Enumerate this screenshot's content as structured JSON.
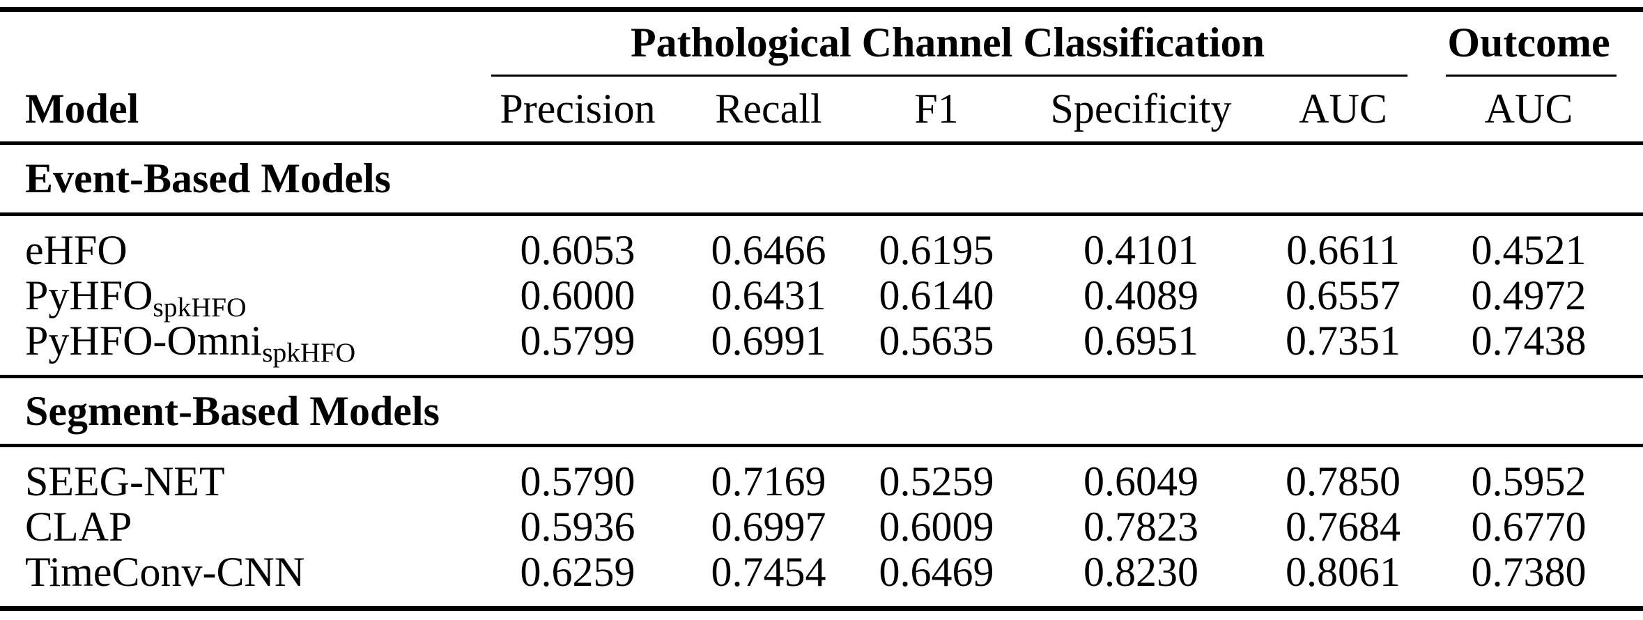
{
  "table": {
    "group_headers": {
      "classification": "Pathological Channel Classification",
      "outcome": "Outcome"
    },
    "column_headers": {
      "model": "Model",
      "precision": "Precision",
      "recall": "Recall",
      "f1": "F1",
      "specificity": "Specificity",
      "auc": "AUC",
      "outcome_auc": "AUC"
    },
    "sections": [
      {
        "label": "Event-Based Models",
        "rows": [
          {
            "model": "eHFO",
            "model_sub": "",
            "precision": "0.6053",
            "recall": "0.6466",
            "f1": "0.6195",
            "specificity": "0.4101",
            "auc": "0.6611",
            "outcome_auc": "0.4521"
          },
          {
            "model": "PyHFO",
            "model_sub": "spkHFO",
            "precision": "0.6000",
            "recall": "0.6431",
            "f1": "0.6140",
            "specificity": "0.4089",
            "auc": "0.6557",
            "outcome_auc": "0.4972"
          },
          {
            "model": "PyHFO-Omni",
            "model_sub": "spkHFO",
            "precision": "0.5799",
            "recall": "0.6991",
            "f1": "0.5635",
            "specificity": "0.6951",
            "auc": "0.7351",
            "outcome_auc": "0.7438"
          }
        ]
      },
      {
        "label": "Segment-Based Models",
        "rows": [
          {
            "model": "SEEG-NET",
            "model_sub": "",
            "precision": "0.5790",
            "recall": "0.7169",
            "f1": "0.5259",
            "specificity": "0.6049",
            "auc": "0.7850",
            "outcome_auc": "0.5952"
          },
          {
            "model": "CLAP",
            "model_sub": "",
            "precision": "0.5936",
            "recall": "0.6997",
            "f1": "0.6009",
            "specificity": "0.7823",
            "auc": "0.7684",
            "outcome_auc": "0.6770"
          },
          {
            "model": "TimeConv-CNN",
            "model_sub": "",
            "precision": "0.6259",
            "recall": "0.7454",
            "f1": "0.6469",
            "specificity": "0.8230",
            "auc": "0.8061",
            "outcome_auc": "0.7380"
          }
        ]
      }
    ],
    "colors": {
      "text": "#000000",
      "background": "#ffffff",
      "rule": "#000000"
    }
  }
}
